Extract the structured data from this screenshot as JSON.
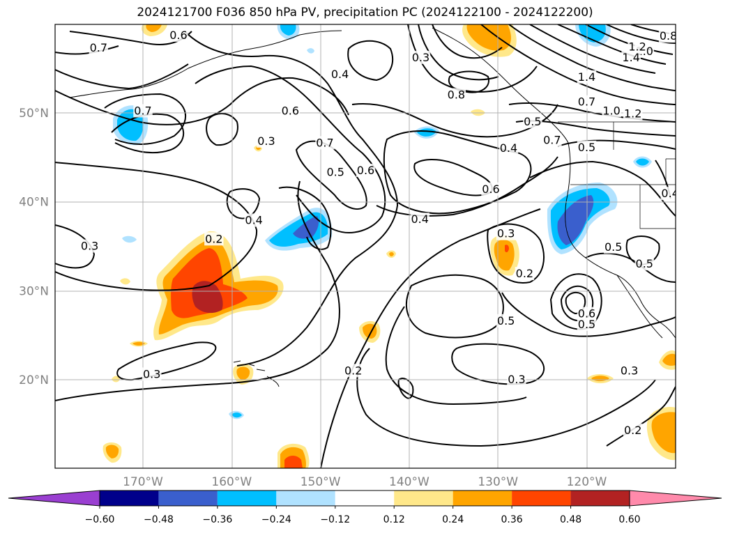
{
  "title": "2024121700 F036 850 hPa PV, precipitation PC (2024122100 - 2024122200)",
  "lat_labels": [
    {
      "text": "50°N",
      "lat": 50
    },
    {
      "text": "40°N",
      "lat": 40
    },
    {
      "text": "30°N",
      "lat": 30
    },
    {
      "text": "20°N",
      "lat": 20
    }
  ],
  "lon_labels": [
    {
      "text": "170°W",
      "lon": -170
    },
    {
      "text": "160°W",
      "lon": -160
    },
    {
      "text": "150°W",
      "lon": -150
    },
    {
      "text": "140°W",
      "lon": -140
    },
    {
      "text": "130°W",
      "lon": -130
    },
    {
      "text": "120°W",
      "lon": -120
    }
  ],
  "colorbar": {
    "colors": [
      "#9a3fd1",
      "#00008b",
      "#3a5fcd",
      "#00bfff",
      "#b0e2ff",
      "#ffffff",
      "#ffe88a",
      "#ffa500",
      "#ff4500",
      "#b22222",
      "#ff8aab"
    ],
    "tick_labels": [
      "−0.60",
      "−0.48",
      "−0.36",
      "−0.24",
      "−0.12",
      "0.12",
      "0.24",
      "0.36",
      "0.48",
      "0.60"
    ]
  },
  "contour_labels": [
    {
      "text": "0.7",
      "lon": -175,
      "lat": 57.3
    },
    {
      "text": "0.6",
      "lon": -166,
      "lat": 58.7
    },
    {
      "text": "0.7",
      "lon": -170,
      "lat": 50.2
    },
    {
      "text": "0.4",
      "lon": -147.8,
      "lat": 54.3
    },
    {
      "text": "0.6",
      "lon": -153.4,
      "lat": 50.2
    },
    {
      "text": "0.3",
      "lon": -156.1,
      "lat": 46.8
    },
    {
      "text": "0.7",
      "lon": -149.5,
      "lat": 46.6
    },
    {
      "text": "0.5",
      "lon": -148.3,
      "lat": 43.3
    },
    {
      "text": "0.6",
      "lon": -144.9,
      "lat": 43.5
    },
    {
      "text": "0.3",
      "lon": -138.7,
      "lat": 56.2
    },
    {
      "text": "0.4",
      "lon": -157.5,
      "lat": 37.9
    },
    {
      "text": "0.8",
      "lon": -134.7,
      "lat": 52.0
    },
    {
      "text": "0.4",
      "lon": -128.8,
      "lat": 46.0
    },
    {
      "text": "0.6",
      "lon": -130.8,
      "lat": 41.4
    },
    {
      "text": "0.4",
      "lon": -138.8,
      "lat": 38.0
    },
    {
      "text": "0.3",
      "lon": -129.1,
      "lat": 36.4
    },
    {
      "text": "0.2",
      "lon": -127.0,
      "lat": 31.9
    },
    {
      "text": "0.5",
      "lon": -129.1,
      "lat": 26.6
    },
    {
      "text": "0.3",
      "lon": -127.9,
      "lat": 20.0
    },
    {
      "text": "0.3",
      "lon": -176.0,
      "lat": 35.0
    },
    {
      "text": "0.2",
      "lon": -162.0,
      "lat": 35.8
    },
    {
      "text": "0.3",
      "lon": -169.0,
      "lat": 20.6
    },
    {
      "text": "0.2",
      "lon": -146.3,
      "lat": 21.0
    },
    {
      "text": "1.0",
      "lon": -113.5,
      "lat": 56.9
    },
    {
      "text": "1.2",
      "lon": -114.3,
      "lat": 57.4
    },
    {
      "text": "1.4",
      "lon": -115.0,
      "lat": 56.2
    },
    {
      "text": "0.8",
      "lon": -110.8,
      "lat": 58.6
    },
    {
      "text": "1.4",
      "lon": -120.0,
      "lat": 54.0
    },
    {
      "text": "0.7",
      "lon": -120.0,
      "lat": 51.2
    },
    {
      "text": "1.0",
      "lon": -117.2,
      "lat": 50.2
    },
    {
      "text": "1.2",
      "lon": -114.8,
      "lat": 49.9
    },
    {
      "text": "0.5",
      "lon": -126.1,
      "lat": 49.0
    },
    {
      "text": "0.7",
      "lon": -123.9,
      "lat": 46.9
    },
    {
      "text": "0.5",
      "lon": -120.0,
      "lat": 46.1
    },
    {
      "text": "0.4",
      "lon": -110.6,
      "lat": 40.9
    },
    {
      "text": "0.5",
      "lon": -117.0,
      "lat": 34.9
    },
    {
      "text": "0.5",
      "lon": -113.5,
      "lat": 33.0
    },
    {
      "text": "0.6",
      "lon": -120.0,
      "lat": 27.4
    },
    {
      "text": "0.5",
      "lon": -120.0,
      "lat": 26.2
    },
    {
      "text": "0.3",
      "lon": -115.2,
      "lat": 21.0
    },
    {
      "text": "0.2",
      "lon": -114.8,
      "lat": 14.3
    }
  ]
}
